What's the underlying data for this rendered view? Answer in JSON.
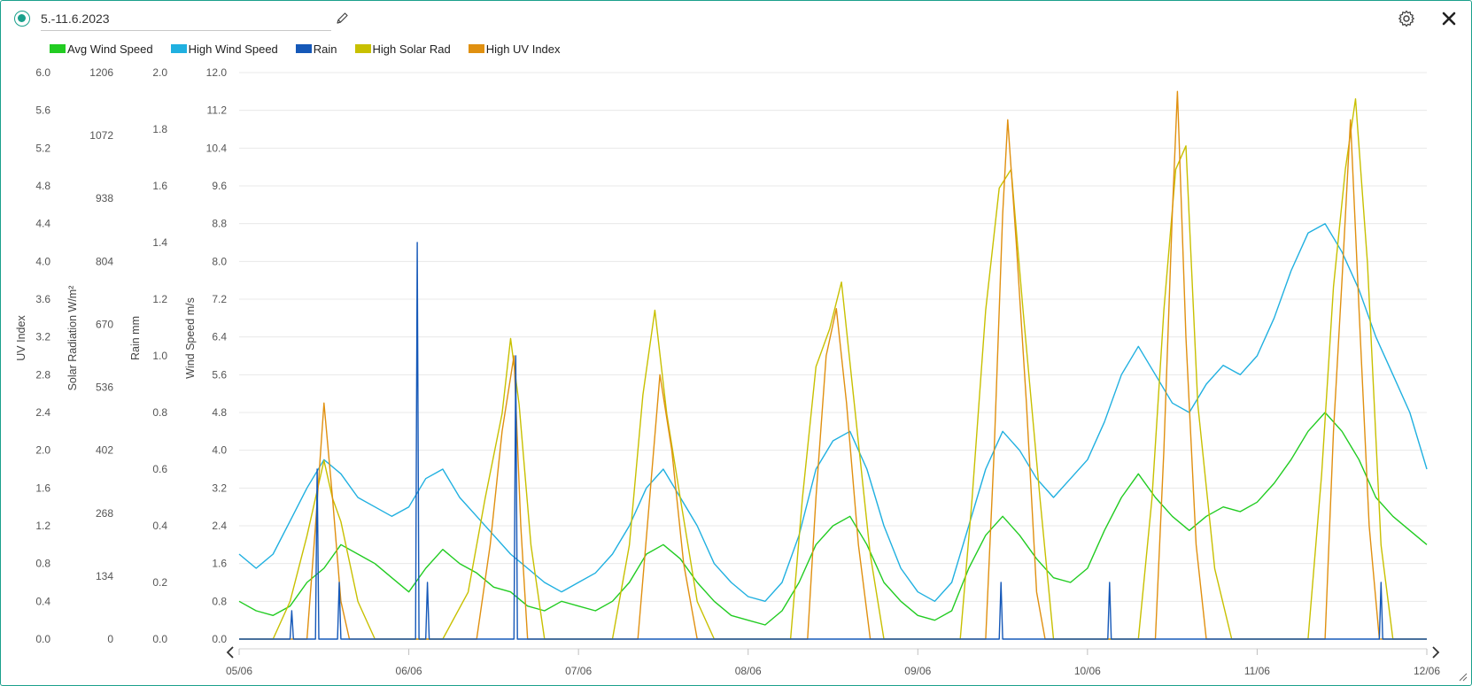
{
  "header": {
    "title": "5.-11.6.2023",
    "status_icon": "status-dot-icon",
    "edit_icon": "pencil-icon",
    "settings_icon": "gear-icon",
    "close_icon": "close-icon"
  },
  "colors": {
    "accent": "#1aa08c",
    "avg_wind": "#22cc22",
    "high_wind": "#20b0e0",
    "rain": "#1558b8",
    "solar": "#c8c000",
    "uv": "#e09010",
    "grid": "#e8e8e8"
  },
  "chart_data": {
    "type": "line",
    "legend": [
      "Avg Wind Speed",
      "High Wind Speed",
      "Rain",
      "High Solar Rad",
      "High UV Index"
    ],
    "legend_position": "top-left",
    "grid": true,
    "x": {
      "ticks": [
        "05/06",
        "06/06",
        "07/06",
        "08/06",
        "09/06",
        "10/06",
        "11/06",
        "12/06"
      ],
      "range_days": [
        0,
        7
      ]
    },
    "axes": [
      {
        "id": "uv",
        "title": "UV Index",
        "range": [
          0,
          6
        ],
        "ticks": [
          "6.0",
          "5.6",
          "5.2",
          "4.8",
          "4.4",
          "4.0",
          "3.6",
          "3.2",
          "2.8",
          "2.4",
          "2.0",
          "1.6",
          "1.2",
          "0.8",
          "0.4",
          "0.0"
        ]
      },
      {
        "id": "solar",
        "title": "Solar Radiation W/m²",
        "range": [
          0,
          1206
        ],
        "ticks": [
          "1206",
          "1072",
          "938",
          "804",
          "670",
          "536",
          "402",
          "268",
          "134",
          "0"
        ]
      },
      {
        "id": "rain",
        "title": "Rain mm",
        "range": [
          0,
          2
        ],
        "ticks": [
          "2.0",
          "1.8",
          "1.6",
          "1.4",
          "1.2",
          "1.0",
          "0.8",
          "0.6",
          "0.4",
          "0.2",
          "0.0"
        ]
      },
      {
        "id": "wind",
        "title": "Wind Speed m/s",
        "range": [
          0,
          12
        ],
        "ticks": [
          "12.0",
          "11.2",
          "10.4",
          "9.6",
          "8.8",
          "8.0",
          "7.2",
          "6.4",
          "5.6",
          "4.8",
          "4.0",
          "3.2",
          "2.4",
          "1.6",
          "0.8",
          "0.0"
        ]
      }
    ],
    "series": [
      {
        "name": "Avg Wind Speed",
        "axis": "wind",
        "color": "#22cc22",
        "points": [
          [
            0.0,
            0.8
          ],
          [
            0.1,
            0.6
          ],
          [
            0.2,
            0.5
          ],
          [
            0.3,
            0.7
          ],
          [
            0.4,
            1.2
          ],
          [
            0.5,
            1.5
          ],
          [
            0.6,
            2.0
          ],
          [
            0.7,
            1.8
          ],
          [
            0.8,
            1.6
          ],
          [
            0.9,
            1.3
          ],
          [
            1.0,
            1.0
          ],
          [
            1.1,
            1.5
          ],
          [
            1.2,
            1.9
          ],
          [
            1.3,
            1.6
          ],
          [
            1.4,
            1.4
          ],
          [
            1.5,
            1.1
          ],
          [
            1.6,
            1.0
          ],
          [
            1.7,
            0.7
          ],
          [
            1.8,
            0.6
          ],
          [
            1.9,
            0.8
          ],
          [
            2.0,
            0.7
          ],
          [
            2.1,
            0.6
          ],
          [
            2.2,
            0.8
          ],
          [
            2.3,
            1.2
          ],
          [
            2.4,
            1.8
          ],
          [
            2.5,
            2.0
          ],
          [
            2.6,
            1.7
          ],
          [
            2.7,
            1.2
          ],
          [
            2.8,
            0.8
          ],
          [
            2.9,
            0.5
          ],
          [
            3.0,
            0.4
          ],
          [
            3.1,
            0.3
          ],
          [
            3.2,
            0.6
          ],
          [
            3.3,
            1.2
          ],
          [
            3.4,
            2.0
          ],
          [
            3.5,
            2.4
          ],
          [
            3.6,
            2.6
          ],
          [
            3.7,
            2.0
          ],
          [
            3.8,
            1.2
          ],
          [
            3.9,
            0.8
          ],
          [
            4.0,
            0.5
          ],
          [
            4.1,
            0.4
          ],
          [
            4.2,
            0.6
          ],
          [
            4.3,
            1.5
          ],
          [
            4.4,
            2.2
          ],
          [
            4.5,
            2.6
          ],
          [
            4.6,
            2.2
          ],
          [
            4.7,
            1.7
          ],
          [
            4.8,
            1.3
          ],
          [
            4.9,
            1.2
          ],
          [
            5.0,
            1.5
          ],
          [
            5.1,
            2.3
          ],
          [
            5.2,
            3.0
          ],
          [
            5.3,
            3.5
          ],
          [
            5.4,
            3.0
          ],
          [
            5.5,
            2.6
          ],
          [
            5.6,
            2.3
          ],
          [
            5.7,
            2.6
          ],
          [
            5.8,
            2.8
          ],
          [
            5.9,
            2.7
          ],
          [
            6.0,
            2.9
          ],
          [
            6.1,
            3.3
          ],
          [
            6.2,
            3.8
          ],
          [
            6.3,
            4.4
          ],
          [
            6.4,
            4.8
          ],
          [
            6.5,
            4.4
          ],
          [
            6.6,
            3.8
          ],
          [
            6.7,
            3.0
          ],
          [
            6.8,
            2.6
          ],
          [
            6.9,
            2.3
          ],
          [
            7.0,
            2.0
          ]
        ]
      },
      {
        "name": "High Wind Speed",
        "axis": "wind",
        "color": "#20b0e0",
        "points": [
          [
            0.0,
            1.8
          ],
          [
            0.1,
            1.5
          ],
          [
            0.2,
            1.8
          ],
          [
            0.3,
            2.5
          ],
          [
            0.4,
            3.2
          ],
          [
            0.5,
            3.8
          ],
          [
            0.6,
            3.5
          ],
          [
            0.7,
            3.0
          ],
          [
            0.8,
            2.8
          ],
          [
            0.9,
            2.6
          ],
          [
            1.0,
            2.8
          ],
          [
            1.1,
            3.4
          ],
          [
            1.2,
            3.6
          ],
          [
            1.3,
            3.0
          ],
          [
            1.4,
            2.6
          ],
          [
            1.5,
            2.2
          ],
          [
            1.6,
            1.8
          ],
          [
            1.7,
            1.5
          ],
          [
            1.8,
            1.2
          ],
          [
            1.9,
            1.0
          ],
          [
            2.0,
            1.2
          ],
          [
            2.1,
            1.4
          ],
          [
            2.2,
            1.8
          ],
          [
            2.3,
            2.4
          ],
          [
            2.4,
            3.2
          ],
          [
            2.5,
            3.6
          ],
          [
            2.6,
            3.0
          ],
          [
            2.7,
            2.4
          ],
          [
            2.8,
            1.6
          ],
          [
            2.9,
            1.2
          ],
          [
            3.0,
            0.9
          ],
          [
            3.1,
            0.8
          ],
          [
            3.2,
            1.2
          ],
          [
            3.3,
            2.2
          ],
          [
            3.4,
            3.6
          ],
          [
            3.5,
            4.2
          ],
          [
            3.6,
            4.4
          ],
          [
            3.7,
            3.6
          ],
          [
            3.8,
            2.4
          ],
          [
            3.9,
            1.5
          ],
          [
            4.0,
            1.0
          ],
          [
            4.1,
            0.8
          ],
          [
            4.2,
            1.2
          ],
          [
            4.3,
            2.4
          ],
          [
            4.4,
            3.6
          ],
          [
            4.5,
            4.4
          ],
          [
            4.6,
            4.0
          ],
          [
            4.7,
            3.4
          ],
          [
            4.8,
            3.0
          ],
          [
            4.9,
            3.4
          ],
          [
            5.0,
            3.8
          ],
          [
            5.1,
            4.6
          ],
          [
            5.2,
            5.6
          ],
          [
            5.3,
            6.2
          ],
          [
            5.4,
            5.6
          ],
          [
            5.5,
            5.0
          ],
          [
            5.6,
            4.8
          ],
          [
            5.7,
            5.4
          ],
          [
            5.8,
            5.8
          ],
          [
            5.9,
            5.6
          ],
          [
            6.0,
            6.0
          ],
          [
            6.1,
            6.8
          ],
          [
            6.2,
            7.8
          ],
          [
            6.3,
            8.6
          ],
          [
            6.4,
            8.8
          ],
          [
            6.5,
            8.2
          ],
          [
            6.6,
            7.4
          ],
          [
            6.7,
            6.4
          ],
          [
            6.8,
            5.6
          ],
          [
            6.9,
            4.8
          ],
          [
            7.0,
            3.6
          ]
        ]
      },
      {
        "name": "Rain",
        "axis": "rain",
        "color": "#1558b8",
        "points": [
          [
            0.0,
            0
          ],
          [
            0.3,
            0
          ],
          [
            0.31,
            0.1
          ],
          [
            0.32,
            0
          ],
          [
            0.45,
            0
          ],
          [
            0.46,
            0.6
          ],
          [
            0.47,
            0
          ],
          [
            0.58,
            0
          ],
          [
            0.59,
            0.2
          ],
          [
            0.6,
            0
          ],
          [
            1.0,
            0
          ],
          [
            1.04,
            0
          ],
          [
            1.05,
            1.4
          ],
          [
            1.06,
            0
          ],
          [
            1.1,
            0
          ],
          [
            1.11,
            0.2
          ],
          [
            1.12,
            0
          ],
          [
            1.62,
            0
          ],
          [
            1.63,
            1.0
          ],
          [
            1.64,
            0
          ],
          [
            4.48,
            0
          ],
          [
            4.49,
            0.2
          ],
          [
            4.5,
            0
          ],
          [
            5.12,
            0
          ],
          [
            5.13,
            0.2
          ],
          [
            5.14,
            0
          ],
          [
            6.72,
            0
          ],
          [
            6.73,
            0.2
          ],
          [
            6.74,
            0
          ],
          [
            7.0,
            0
          ]
        ]
      },
      {
        "name": "High Solar Rad",
        "axis": "solar",
        "color": "#c8c000",
        "points": [
          [
            0.0,
            0
          ],
          [
            0.2,
            0
          ],
          [
            0.3,
            80
          ],
          [
            0.4,
            220
          ],
          [
            0.5,
            380
          ],
          [
            0.55,
            300
          ],
          [
            0.6,
            250
          ],
          [
            0.7,
            80
          ],
          [
            0.8,
            0
          ],
          [
            1.2,
            0
          ],
          [
            1.35,
            100
          ],
          [
            1.45,
            300
          ],
          [
            1.55,
            480
          ],
          [
            1.6,
            640
          ],
          [
            1.65,
            500
          ],
          [
            1.72,
            200
          ],
          [
            1.8,
            0
          ],
          [
            2.2,
            0
          ],
          [
            2.3,
            200
          ],
          [
            2.38,
            520
          ],
          [
            2.45,
            700
          ],
          [
            2.52,
            480
          ],
          [
            2.6,
            300
          ],
          [
            2.7,
            80
          ],
          [
            2.8,
            0
          ],
          [
            3.25,
            0
          ],
          [
            3.32,
            300
          ],
          [
            3.4,
            580
          ],
          [
            3.48,
            660
          ],
          [
            3.55,
            760
          ],
          [
            3.62,
            520
          ],
          [
            3.72,
            180
          ],
          [
            3.8,
            0
          ],
          [
            4.25,
            0
          ],
          [
            4.32,
            300
          ],
          [
            4.4,
            700
          ],
          [
            4.48,
            960
          ],
          [
            4.55,
            1000
          ],
          [
            4.62,
            700
          ],
          [
            4.72,
            300
          ],
          [
            4.8,
            0
          ],
          [
            5.3,
            0
          ],
          [
            5.38,
            300
          ],
          [
            5.45,
            700
          ],
          [
            5.52,
            1000
          ],
          [
            5.58,
            1050
          ],
          [
            5.65,
            500
          ],
          [
            5.75,
            150
          ],
          [
            5.85,
            0
          ],
          [
            6.3,
            0
          ],
          [
            6.38,
            350
          ],
          [
            6.45,
            750
          ],
          [
            6.52,
            1000
          ],
          [
            6.58,
            1150
          ],
          [
            6.65,
            800
          ],
          [
            6.73,
            200
          ],
          [
            6.8,
            0
          ],
          [
            7.0,
            0
          ]
        ]
      },
      {
        "name": "High UV Index",
        "axis": "uv",
        "color": "#e09010",
        "points": [
          [
            0.0,
            0
          ],
          [
            0.4,
            0
          ],
          [
            0.45,
            1.2
          ],
          [
            0.5,
            2.5
          ],
          [
            0.55,
            1.5
          ],
          [
            0.6,
            0.4
          ],
          [
            0.65,
            0
          ],
          [
            1.4,
            0
          ],
          [
            1.48,
            1.0
          ],
          [
            1.55,
            2.2
          ],
          [
            1.62,
            3.0
          ],
          [
            1.66,
            1.2
          ],
          [
            1.7,
            0
          ],
          [
            2.35,
            0
          ],
          [
            2.42,
            1.5
          ],
          [
            2.48,
            2.8
          ],
          [
            2.55,
            2.0
          ],
          [
            2.62,
            0.8
          ],
          [
            2.7,
            0
          ],
          [
            3.35,
            0
          ],
          [
            3.4,
            1.5
          ],
          [
            3.46,
            3.0
          ],
          [
            3.52,
            3.5
          ],
          [
            3.58,
            2.5
          ],
          [
            3.65,
            1.0
          ],
          [
            3.72,
            0
          ],
          [
            4.4,
            0
          ],
          [
            4.45,
            2.0
          ],
          [
            4.5,
            4.5
          ],
          [
            4.53,
            5.5
          ],
          [
            4.58,
            4.2
          ],
          [
            4.64,
            2.5
          ],
          [
            4.7,
            0.5
          ],
          [
            4.75,
            0
          ],
          [
            5.4,
            0
          ],
          [
            5.45,
            2.0
          ],
          [
            5.5,
            4.5
          ],
          [
            5.53,
            5.8
          ],
          [
            5.58,
            3.2
          ],
          [
            5.64,
            1.0
          ],
          [
            5.7,
            0
          ],
          [
            6.4,
            0
          ],
          [
            6.45,
            2.2
          ],
          [
            6.5,
            3.8
          ],
          [
            6.55,
            5.5
          ],
          [
            6.6,
            3.5
          ],
          [
            6.66,
            1.2
          ],
          [
            6.72,
            0
          ],
          [
            7.0,
            0
          ]
        ]
      }
    ]
  },
  "nav": {
    "prev_icon": "chevron-left-icon",
    "next_icon": "chevron-right-icon"
  }
}
